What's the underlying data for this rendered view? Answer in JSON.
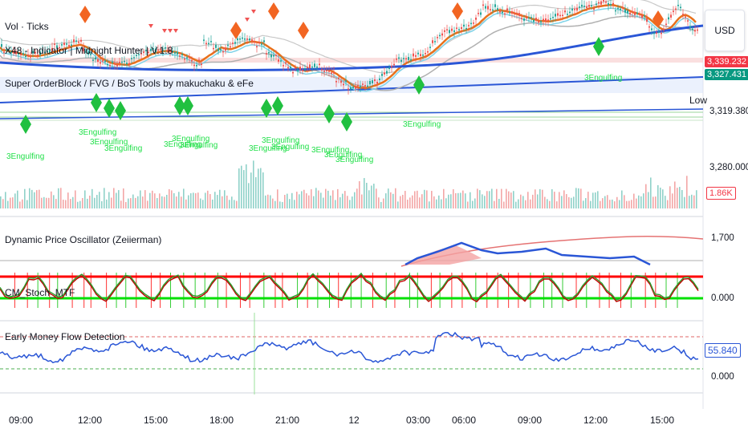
{
  "legend": {
    "vol": "Vol · Ticks",
    "x48": "X48 - Indicator | Midnight Hunter | V.1.8",
    "sob": "Super OrderBlock / FVG / BoS Tools by makuchaku & eFe"
  },
  "currency_button": "USD",
  "price_scale": {
    "pill_red": "3,339.232",
    "pill_teal": "3,327.431",
    "low_label": "Low",
    "low_value": "3,319.380",
    "level_3280": "3,280.000",
    "volume_pill": "1.86K"
  },
  "indicators": {
    "dpo_title": "Dynamic Price Oscillator (Zeiierman)",
    "dpo_top": "1,700",
    "stoch_title": "CM_Stoch_MTF",
    "stoch_bottom": "0.000",
    "emfd_title": "Early Money Flow Detection",
    "emfd_value": "55.840",
    "emfd_bottom": "0.000"
  },
  "time_axis": [
    "09:00",
    "12:00",
    "15:00",
    "18:00",
    "21:00",
    "12",
    "03:00",
    "06:00",
    "09:00",
    "12:00",
    "15:00"
  ],
  "engulfing_label": "3Engulfing",
  "colors": {
    "up": "#26a69a",
    "down": "#ef5350",
    "blue_line": "#2a56d6",
    "orange_line": "#e8711b",
    "green_marker": "#20c040",
    "orange_marker": "#f26522",
    "red_line": "#ff0000",
    "green_line": "#00e000"
  }
}
